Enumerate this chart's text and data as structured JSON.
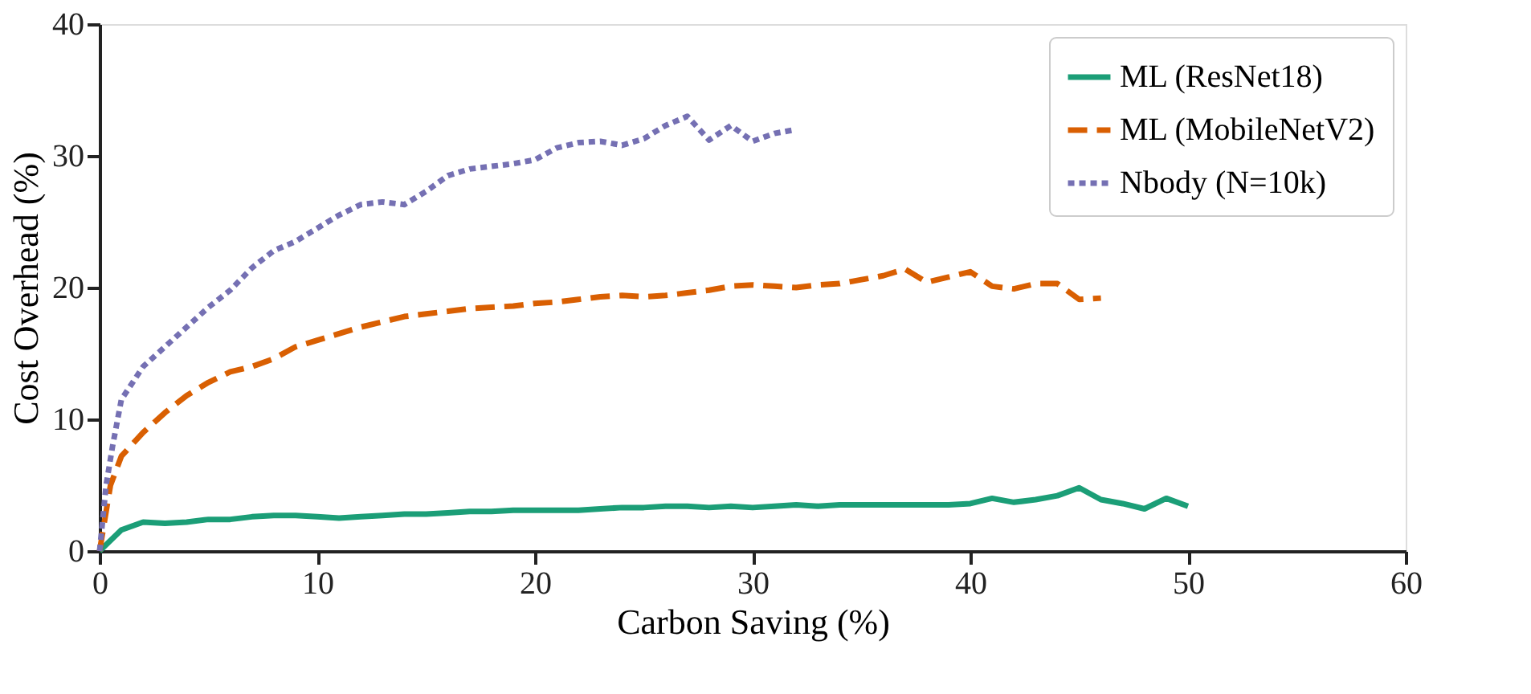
{
  "chart_data": {
    "type": "line",
    "xlabel": "Carbon Saving (%)",
    "ylabel": "Cost Overhead (%)",
    "xlim": [
      0,
      60
    ],
    "xticks": [
      0,
      10,
      20,
      30,
      40,
      50,
      60
    ],
    "ylim": [
      0,
      40
    ],
    "yticks": [
      0,
      10,
      20,
      30,
      40
    ],
    "grid": false,
    "legend": "top right",
    "marker": "none",
    "series": [
      {
        "name": "ML (ResNet18)",
        "color": "#1b9e77",
        "line_style": "solid",
        "x": [
          0,
          1,
          2,
          3,
          4,
          5,
          6,
          7,
          8,
          9,
          10,
          11,
          12,
          13,
          14,
          15,
          16,
          17,
          18,
          19,
          20,
          21,
          22,
          23,
          24,
          25,
          26,
          27,
          28,
          29,
          30,
          31,
          32,
          33,
          34,
          35,
          36,
          37,
          38,
          39,
          40,
          41,
          42,
          43,
          44,
          45,
          46,
          47,
          48,
          49,
          50
        ],
        "values": [
          0,
          1.6,
          2.2,
          2.1,
          2.2,
          2.4,
          2.4,
          2.6,
          2.7,
          2.7,
          2.6,
          2.5,
          2.6,
          2.7,
          2.8,
          2.8,
          2.9,
          3.0,
          3.0,
          3.1,
          3.1,
          3.1,
          3.1,
          3.2,
          3.3,
          3.3,
          3.4,
          3.4,
          3.3,
          3.4,
          3.3,
          3.4,
          3.5,
          3.4,
          3.5,
          3.5,
          3.5,
          3.5,
          3.5,
          3.5,
          3.6,
          4.0,
          3.7,
          3.9,
          4.2,
          4.8,
          3.9,
          3.6,
          3.2,
          4.0,
          3.4
        ]
      },
      {
        "name": "ML (MobileNetV2)",
        "color": "#d95f02",
        "line_style": "dashed",
        "x": [
          0,
          0.5,
          1,
          2,
          3,
          4,
          5,
          6,
          7,
          8,
          9,
          10,
          11,
          12,
          13,
          14,
          15,
          16,
          17,
          18,
          19,
          20,
          21,
          22,
          23,
          24,
          25,
          26,
          27,
          28,
          29,
          30,
          31,
          32,
          33,
          34,
          35,
          36,
          37,
          38,
          39,
          40,
          41,
          42,
          43,
          44,
          45,
          46
        ],
        "values": [
          0,
          5,
          7.2,
          9,
          10.5,
          11.8,
          12.8,
          13.6,
          14,
          14.6,
          15.5,
          16,
          16.5,
          17,
          17.4,
          17.8,
          18,
          18.2,
          18.4,
          18.5,
          18.6,
          18.8,
          18.9,
          19.1,
          19.3,
          19.4,
          19.3,
          19.4,
          19.6,
          19.8,
          20.1,
          20.2,
          20.1,
          20.0,
          20.2,
          20.3,
          20.6,
          20.9,
          21.4,
          20.4,
          20.8,
          21.2,
          20.1,
          19.9,
          20.3,
          20.3,
          19.1,
          19.2
        ]
      },
      {
        "name": "Nbody (N=10k)",
        "color": "#7570b3",
        "line_style": "dotted",
        "x": [
          0,
          0.3,
          0.6,
          1,
          2,
          3,
          4,
          5,
          6,
          7,
          8,
          9,
          10,
          11,
          12,
          13,
          14,
          15,
          16,
          17,
          18,
          19,
          20,
          21,
          22,
          23,
          24,
          25,
          26,
          27,
          28,
          29,
          30,
          31,
          32
        ],
        "values": [
          0,
          5,
          8,
          11.5,
          14,
          15.5,
          17,
          18.5,
          19.8,
          21.5,
          22.8,
          23.5,
          24.5,
          25.5,
          26.3,
          26.5,
          26.3,
          27.3,
          28.5,
          29,
          29.2,
          29.4,
          29.7,
          30.6,
          31,
          31.1,
          30.8,
          31.3,
          32.3,
          33,
          31.2,
          32.3,
          31.1,
          31.7,
          32
        ]
      }
    ]
  }
}
